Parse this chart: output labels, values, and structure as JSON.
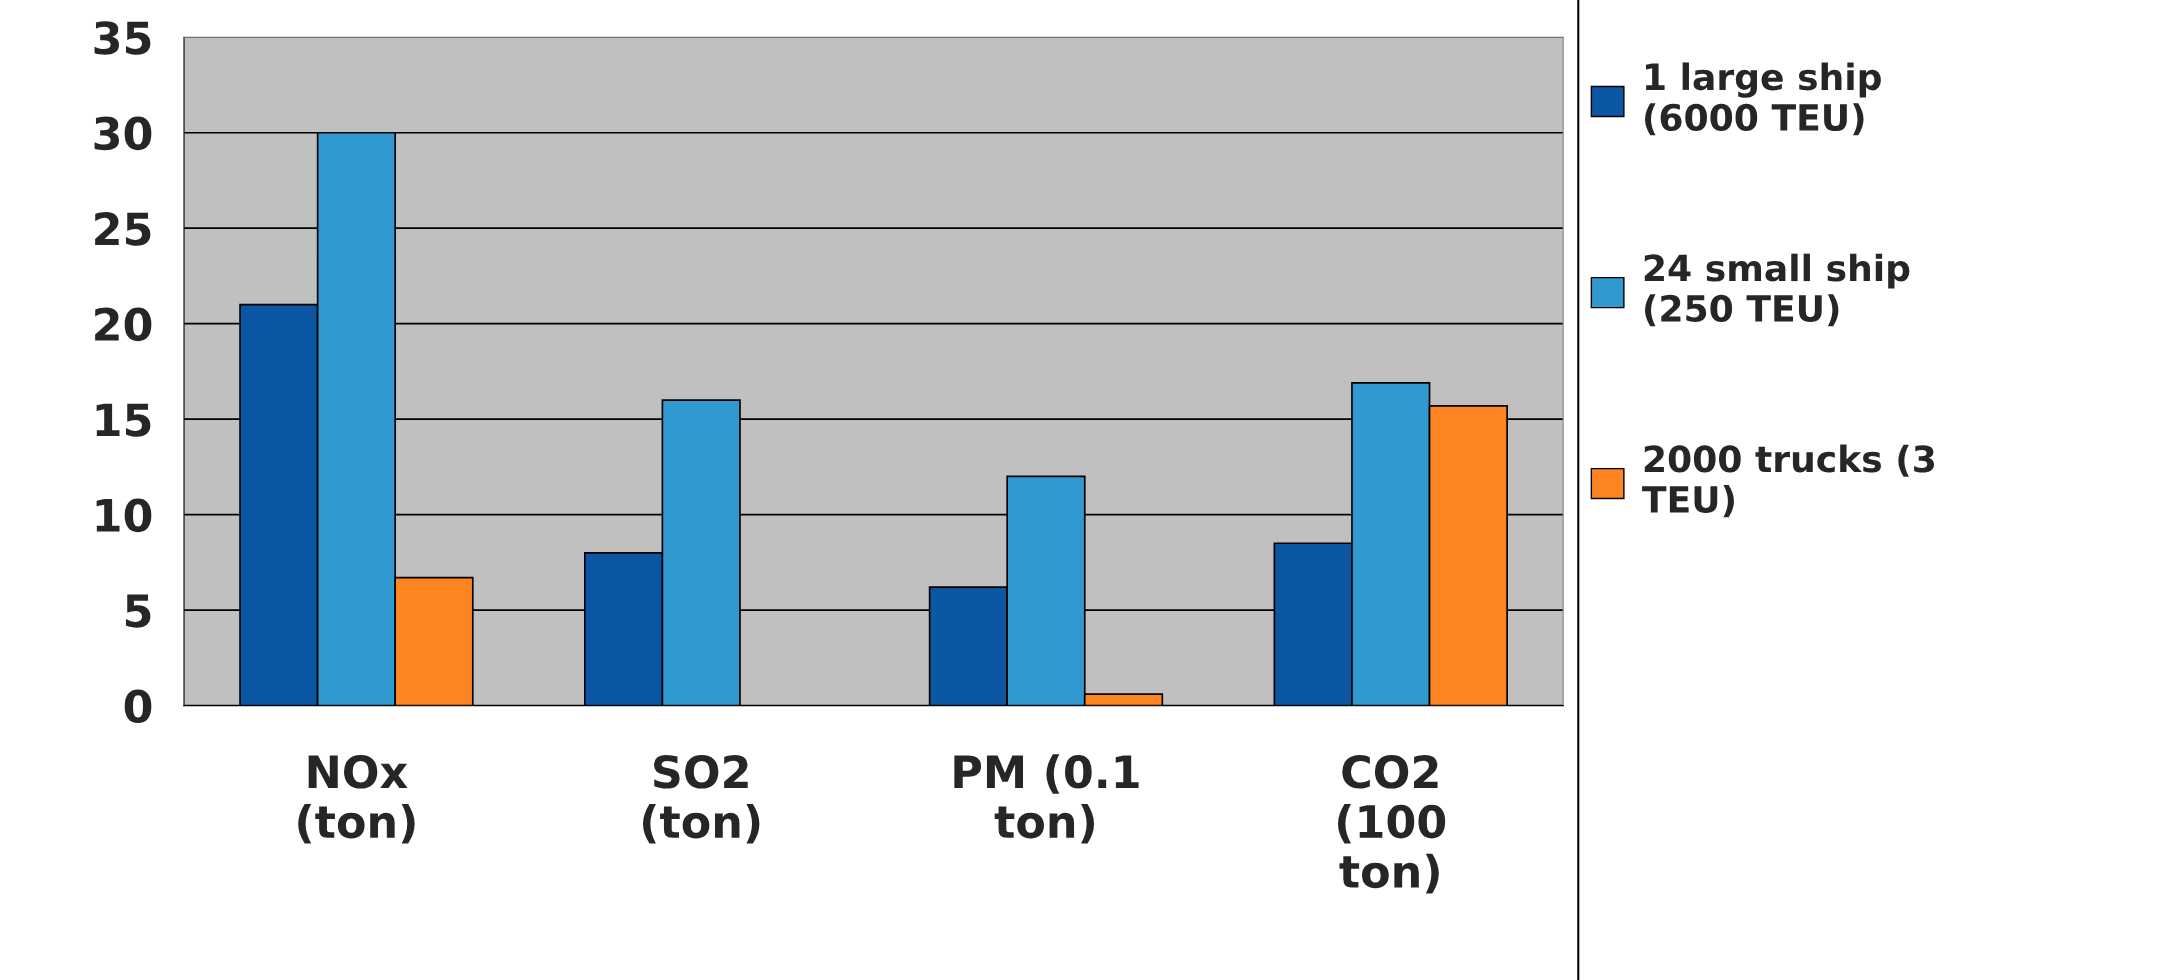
{
  "chart_data": {
    "type": "bar",
    "categories": [
      "NOx\n(ton)",
      "SO2\n(ton)",
      "PM (0.1\nton)",
      "CO2\n(100\nton)"
    ],
    "series": [
      {
        "name": "1 large ship\n(6000 TEU)",
        "color": "#0b57a4",
        "values": [
          21,
          8,
          6.2,
          8.5
        ]
      },
      {
        "name": "24 small ship\n(250 TEU)",
        "color": "#3099cf",
        "values": [
          30,
          16,
          12,
          16.9
        ]
      },
      {
        "name": "2000 trucks (3\nTEU)",
        "color": "#ff8422",
        "values": [
          6.7,
          null,
          0.6,
          15.7
        ]
      }
    ],
    "ylim": [
      0,
      35
    ],
    "yticks": [
      0,
      5,
      10,
      15,
      20,
      25,
      30,
      35
    ],
    "grid": "y",
    "legend": "right"
  }
}
